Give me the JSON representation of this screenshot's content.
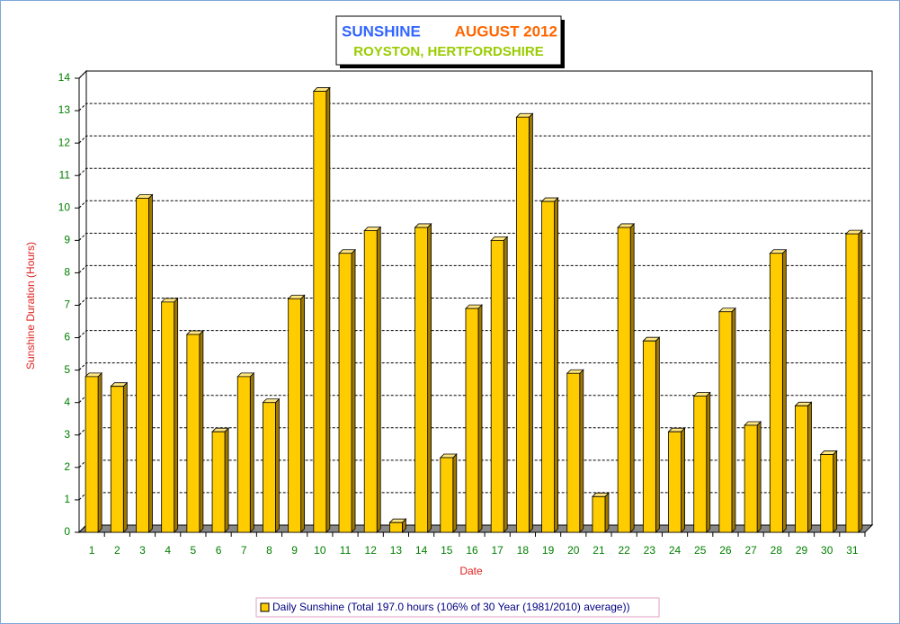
{
  "chart_data": {
    "type": "bar",
    "title": [
      "SUNSHINE",
      "AUGUST 2012"
    ],
    "subtitle": "ROYSTON, HERTFORDSHIRE",
    "x_label": "Date",
    "y_label": "Sunshine Duration (Hours)",
    "categories": [
      "1",
      "2",
      "3",
      "4",
      "5",
      "6",
      "7",
      "8",
      "9",
      "10",
      "11",
      "12",
      "13",
      "14",
      "15",
      "16",
      "17",
      "18",
      "19",
      "20",
      "21",
      "22",
      "23",
      "24",
      "25",
      "26",
      "27",
      "28",
      "29",
      "30",
      "31"
    ],
    "series": [
      {
        "name": "Daily Sunshine (Total 197.0 hours (106% of 30 Year (1981/2010) average))",
        "color": "#ffcc00",
        "values": [
          4.8,
          4.5,
          10.3,
          7.1,
          6.1,
          3.1,
          4.8,
          4.0,
          7.2,
          13.6,
          8.6,
          9.3,
          0.3,
          9.4,
          2.3,
          6.9,
          9.0,
          12.8,
          10.2,
          4.9,
          1.1,
          9.4,
          5.9,
          3.1,
          4.2,
          6.8,
          3.3,
          8.6,
          3.9,
          2.4,
          9.2
        ]
      }
    ],
    "ylim": [
      0,
      14
    ],
    "yticks": [
      0,
      1,
      2,
      3,
      4,
      5,
      6,
      7,
      8,
      9,
      10,
      11,
      12,
      13,
      14
    ],
    "grid": true
  }
}
